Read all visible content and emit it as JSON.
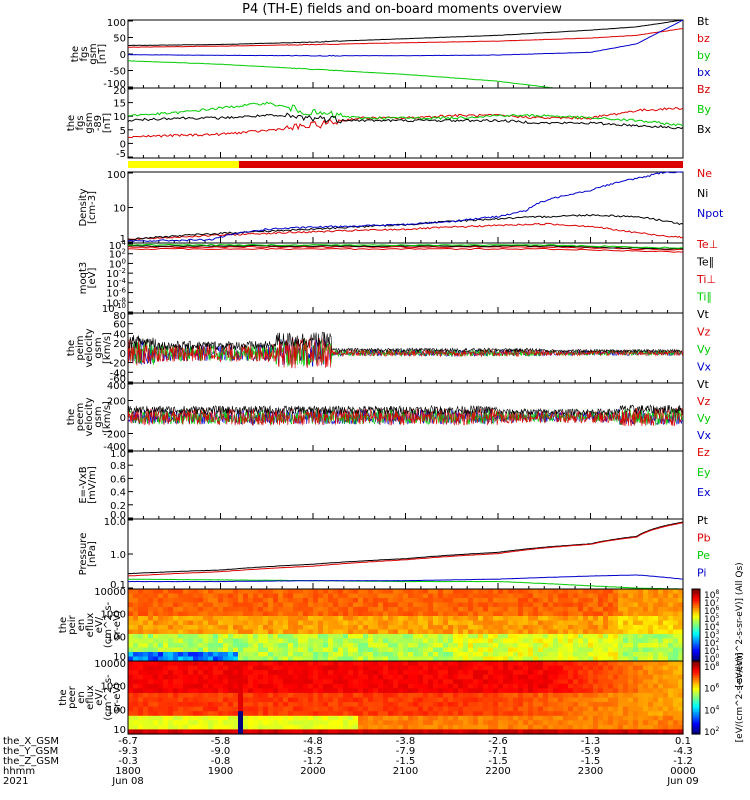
{
  "title": "P4 (TH-E) fields and on-board moments overview",
  "colors": {
    "black": "#000000",
    "red": "#dd0000",
    "green": "#00cc00",
    "blue": "#0000cc",
    "yellow": "#ffff00"
  },
  "footer": {
    "rows": [
      {
        "label": "the_X_GSM",
        "values": [
          "-6.7",
          "-5.8",
          "-4.8",
          "-3.8",
          "-2.6",
          "-1.3",
          "0.1"
        ]
      },
      {
        "label": "the_Y_GSM",
        "values": [
          "-9.3",
          "-9.0",
          "-8.5",
          "-7.9",
          "-7.1",
          "-5.9",
          "-4.3"
        ]
      },
      {
        "label": "the_Z_GSM",
        "values": [
          "-0.3",
          "-0.8",
          "-1.2",
          "-1.5",
          "-1.5",
          "-1.5",
          "-1.2"
        ]
      },
      {
        "label": "hhmm",
        "values": [
          "1800",
          "1900",
          "2000",
          "2100",
          "2200",
          "2300",
          "0000"
        ]
      }
    ],
    "year": "2021",
    "dates": [
      "Jun 08",
      "Jun 09"
    ]
  },
  "chart_data": [
    {
      "type": "line",
      "id": "fgs_gsm",
      "ylabel_lines": [
        "the",
        "fgs",
        "gsm",
        "[nT]"
      ],
      "yticks": [
        "100",
        "50",
        "0",
        "-50",
        "-100"
      ],
      "ylim": [
        -100,
        100
      ],
      "x_hours": [
        18,
        19,
        20,
        21,
        22,
        23,
        24
      ],
      "series": [
        {
          "name": "Bt",
          "color": "black",
          "x": [
            18,
            19,
            20,
            21,
            22,
            23,
            23.5,
            24
          ],
          "values": [
            25,
            28,
            35,
            45,
            55,
            70,
            80,
            100
          ]
        },
        {
          "name": "bz",
          "color": "red",
          "x": [
            18,
            19,
            20,
            21,
            22,
            23,
            23.5,
            24
          ],
          "values": [
            20,
            23,
            28,
            33,
            38,
            47,
            55,
            75
          ]
        },
        {
          "name": "by",
          "color": "green",
          "x": [
            18,
            19,
            20,
            21,
            22,
            22.6
          ],
          "values": [
            -20,
            -30,
            -45,
            -60,
            -80,
            -100
          ]
        },
        {
          "name": "bx",
          "color": "blue",
          "x": [
            18,
            19,
            20,
            21,
            22,
            23,
            23.5,
            24
          ],
          "values": [
            -2,
            -4,
            -5,
            -5,
            -3,
            5,
            30,
            100
          ]
        }
      ]
    },
    {
      "type": "line",
      "id": "fgs_gsm_89",
      "ylabel_lines": [
        "the",
        "fgs",
        "gsm",
        "-89",
        "[nT]"
      ],
      "yticks": [
        "20",
        "15",
        "10",
        "5",
        "0",
        "-5"
      ],
      "ylim": [
        -8,
        20
      ],
      "series": [
        {
          "name": "Bz",
          "color": "red",
          "x": [
            18,
            18.5,
            19,
            19.5,
            20,
            20.5,
            21,
            21.5,
            22,
            22.5,
            23,
            23.5,
            24
          ],
          "values": [
            0.5,
            1,
            1.5,
            3,
            5,
            8,
            8,
            9,
            9,
            8,
            8,
            11,
            12
          ]
        },
        {
          "name": "By",
          "color": "green",
          "x": [
            18,
            18.5,
            19,
            19.5,
            20,
            20.5,
            21,
            21.5,
            22,
            22.5,
            23,
            23.5,
            24
          ],
          "values": [
            9,
            10,
            12,
            14,
            10,
            8,
            8,
            8,
            9,
            9,
            8,
            7,
            5
          ]
        },
        {
          "name": "Bx",
          "color": "black",
          "x": [
            18,
            18.5,
            19,
            19.5,
            20,
            20.5,
            21,
            21.5,
            22,
            22.5,
            23,
            23.5,
            24
          ],
          "values": [
            7,
            8,
            8,
            9,
            8,
            7,
            7,
            7,
            7,
            6,
            6,
            5,
            4
          ]
        }
      ]
    },
    {
      "type": "line",
      "id": "density",
      "ylabel_lines": [
        "Density",
        "[cm-3]"
      ],
      "yticks": [
        "100",
        "10",
        "1"
      ],
      "log": true,
      "ylim": [
        0.3,
        150
      ],
      "series": [
        {
          "name": "Ne",
          "color": "red",
          "x": [
            18,
            19,
            20,
            21,
            22,
            22.5,
            23,
            23.3,
            23.7,
            24
          ],
          "values": [
            0.4,
            0.6,
            0.8,
            1.0,
            1.4,
            1.6,
            1.3,
            0.9,
            0.6,
            0.5
          ]
        },
        {
          "name": "Ni",
          "color": "black",
          "x": [
            18,
            19,
            20,
            21,
            22,
            22.5,
            23,
            23.5,
            24
          ],
          "values": [
            0.4,
            0.7,
            1.0,
            1.5,
            2.5,
            3.0,
            3.5,
            3.0,
            1.5
          ]
        },
        {
          "name": "Npot",
          "color": "blue",
          "x": [
            18,
            18.9,
            18.95,
            19.5,
            20,
            21,
            21.5,
            22,
            22.3,
            22.6,
            23,
            23.3,
            23.6,
            23.8,
            24
          ],
          "values": [
            0.35,
            0.4,
            0.45,
            1,
            1.2,
            1.5,
            2,
            3,
            5,
            15,
            30,
            60,
            100,
            150,
            150
          ]
        }
      ]
    },
    {
      "type": "line",
      "id": "moqt3",
      "ylabel_lines": [
        "moqt3",
        "[eV]"
      ],
      "yticks": [
        "10^4",
        "10^2",
        "10^0",
        "10^-2",
        "10^-4",
        "10^-6",
        "10^-8",
        "10^-10"
      ],
      "log": true,
      "series": [
        {
          "name": "Te⊥",
          "color": "red",
          "values": [
            3000,
            2800,
            2500,
            2000,
            1500,
            1000
          ]
        },
        {
          "name": "Te∥",
          "color": "black",
          "values": [
            3200,
            3000,
            2700,
            2200,
            1700,
            1200
          ]
        },
        {
          "name": "Ti⊥",
          "color": "red",
          "values": [
            4000,
            3800,
            3500,
            3000,
            2500,
            2000
          ]
        },
        {
          "name": "Ti∥",
          "color": "green",
          "values": [
            5000,
            4800,
            4500,
            4000,
            3000,
            2500
          ]
        }
      ]
    },
    {
      "type": "line",
      "id": "peim_velocity",
      "ylabel_lines": [
        "the",
        "peim",
        "velocity",
        "gsm",
        "[km/s]"
      ],
      "yticks": [
        "80",
        "60",
        "40",
        "20",
        "0",
        "-20",
        "-40",
        "-60"
      ],
      "ylim": [
        -60,
        80
      ],
      "series": [
        {
          "name": "Vt",
          "color": "black"
        },
        {
          "name": "Vz",
          "color": "red"
        },
        {
          "name": "Vy",
          "color": "green"
        },
        {
          "name": "Vx",
          "color": "blue"
        }
      ]
    },
    {
      "type": "line",
      "id": "peem_velocity",
      "ylabel_lines": [
        "the",
        "peem",
        "velocity",
        "gsm",
        "[km/s]"
      ],
      "yticks": [
        "400",
        "200",
        "0",
        "-200",
        "-400"
      ],
      "ylim": [
        -400,
        400
      ],
      "series": [
        {
          "name": "Vt",
          "color": "black"
        },
        {
          "name": "Vz",
          "color": "red"
        },
        {
          "name": "Vy",
          "color": "green"
        },
        {
          "name": "Vx",
          "color": "blue"
        }
      ]
    },
    {
      "type": "line",
      "id": "efield",
      "ylabel_lines": [
        "E=-VxB",
        "[mV/m]"
      ],
      "yticks": [
        "1.0",
        "0.8",
        "0.6",
        "0.4",
        "0.2",
        "0.0"
      ],
      "ylim": [
        0,
        1
      ],
      "series": [
        {
          "name": "Ez",
          "color": "red"
        },
        {
          "name": "Ey",
          "color": "green"
        },
        {
          "name": "Ex",
          "color": "blue"
        }
      ]
    },
    {
      "type": "line",
      "id": "pressure",
      "ylabel_lines": [
        "Pressure",
        "[nPa]"
      ],
      "yticks": [
        "10.0",
        "1.0",
        "0.1"
      ],
      "log": true,
      "ylim": [
        0.06,
        40
      ],
      "series": [
        {
          "name": "Pt",
          "color": "black",
          "x": [
            18,
            19,
            20,
            21,
            22,
            23,
            23.5,
            24
          ],
          "values": [
            0.25,
            0.35,
            0.6,
            1.0,
            1.8,
            4.0,
            8,
            30
          ]
        },
        {
          "name": "Pb",
          "color": "red",
          "x": [
            18,
            19,
            20,
            21,
            22,
            23,
            23.5,
            24
          ],
          "values": [
            0.2,
            0.3,
            0.5,
            0.9,
            1.6,
            3.8,
            7.5,
            28
          ]
        },
        {
          "name": "Pe",
          "color": "green",
          "x": [
            18,
            19,
            20,
            21,
            22,
            22.5,
            23,
            23.5,
            24
          ],
          "values": [
            0.15,
            0.14,
            0.13,
            0.12,
            0.12,
            0.1,
            0.08,
            0.065,
            0.06
          ]
        },
        {
          "name": "Pi",
          "color": "blue",
          "x": [
            18,
            19,
            20,
            21,
            22,
            23,
            23.5,
            24
          ],
          "values": [
            0.12,
            0.12,
            0.13,
            0.13,
            0.15,
            0.2,
            0.22,
            0.15
          ]
        }
      ]
    },
    {
      "type": "heatmap",
      "id": "peir_eflux",
      "ylabel_lines": [
        "the",
        "peir",
        "en",
        "eflux",
        "eV/",
        "(cm^2-s-",
        "sr-eV)"
      ],
      "yticks": [
        "10000",
        "1000",
        "100",
        "10"
      ],
      "colorbar_label": "[eV/(cm^2-s-sr-eV)] (All Qs)",
      "colorbar_ticks": [
        "10^8",
        "10^7",
        "10^6",
        "10^5",
        "10^4",
        "10^3",
        "10^2",
        "10^1",
        "10^0"
      ]
    },
    {
      "type": "heatmap",
      "id": "peer_eflux",
      "ylabel_lines": [
        "the",
        "peer",
        "en",
        "eflux",
        "eV/",
        "(cm^2-s-",
        "sr-eV)"
      ],
      "yticks": [
        "10000",
        "1000",
        "100",
        "10"
      ],
      "colorbar_label": "[eV/(cm^2-s-sr-eV)]",
      "colorbar_ticks": [
        "10^8",
        "10^6",
        "10^4",
        "10^2"
      ]
    }
  ]
}
